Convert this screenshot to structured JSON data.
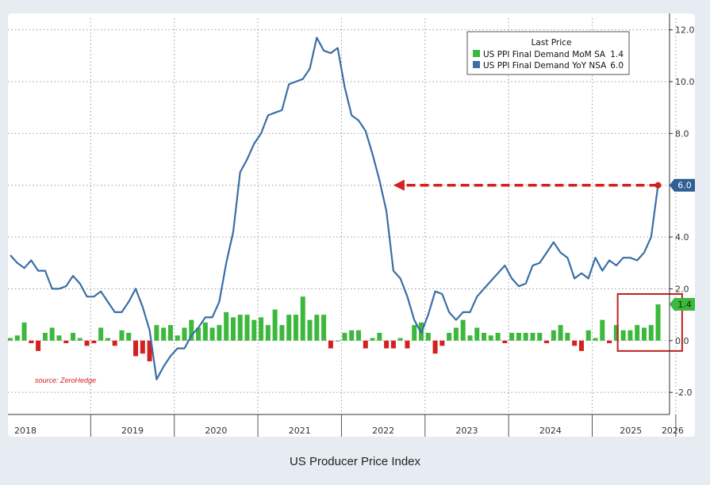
{
  "caption": "US Producer Price Index",
  "chart_data": {
    "type": "line+bar",
    "x_years": [
      "2018",
      "2019",
      "2020",
      "2021",
      "2022",
      "2023",
      "2024",
      "2025",
      "2026"
    ],
    "y_ticks": [
      "12.0",
      "10.0",
      "8.0",
      "6.0",
      "4.0",
      "2.0",
      "0.0",
      "-2.0"
    ],
    "ylim": [
      -2.8,
      12.6
    ],
    "grid": true,
    "legend": {
      "title": "Last Price",
      "position": "top-right",
      "items": [
        {
          "label": "US PPI Final Demand MoM SA",
          "value": "1.4",
          "color": "#3cb83c"
        },
        {
          "label": "US PPI Final Demand YoY NSA",
          "value": "6.0",
          "color": "#3a6ea5"
        }
      ]
    },
    "last_labels": {
      "line": "6.0",
      "bars": "1.4"
    },
    "source": "source: ZeroHedge",
    "series": [
      {
        "name": "US PPI Final Demand YoY NSA",
        "kind": "line",
        "color": "#3a6ea5",
        "start": "2018-01",
        "values": [
          3.3,
          3.0,
          2.8,
          3.1,
          2.7,
          2.7,
          2.0,
          2.0,
          2.1,
          2.5,
          2.2,
          1.7,
          1.7,
          1.9,
          1.5,
          1.1,
          1.1,
          1.5,
          2.0,
          1.3,
          0.4,
          -1.5,
          -1.0,
          -0.6,
          -0.3,
          -0.3,
          0.2,
          0.5,
          0.9,
          0.9,
          1.5,
          3.0,
          4.2,
          6.5,
          7.0,
          7.6,
          8.0,
          8.7,
          8.8,
          8.9,
          9.9,
          10.0,
          10.1,
          10.5,
          11.7,
          11.2,
          11.1,
          11.3,
          9.8,
          8.7,
          8.5,
          8.1,
          7.2,
          6.2,
          5.0,
          2.7,
          2.4,
          1.7,
          0.8,
          0.3,
          1.0,
          1.9,
          1.8,
          1.1,
          0.8,
          1.1,
          1.1,
          1.7,
          2.0,
          2.3,
          2.6,
          2.9,
          2.4,
          2.1,
          2.2,
          2.9,
          3.0,
          3.4,
          3.8,
          3.4,
          3.2,
          2.4,
          2.6,
          2.4,
          3.2,
          2.7,
          3.1,
          2.9,
          3.2,
          3.2,
          3.1,
          3.4,
          4.0,
          6.0
        ]
      },
      {
        "name": "US PPI Final Demand MoM SA",
        "kind": "bar",
        "color_up": "#3cb83c",
        "color_down": "#d42020",
        "start": "2018-01",
        "values": [
          0.1,
          0.2,
          0.7,
          -0.1,
          -0.4,
          0.3,
          0.5,
          0.2,
          -0.1,
          0.3,
          0.1,
          -0.2,
          -0.1,
          0.5,
          0.1,
          -0.2,
          0.4,
          0.3,
          -0.6,
          -0.5,
          -0.8,
          0.6,
          0.5,
          0.6,
          0.2,
          0.5,
          0.8,
          0.5,
          0.7,
          0.5,
          0.6,
          1.1,
          0.9,
          1.0,
          1.0,
          0.8,
          0.9,
          0.6,
          1.2,
          0.6,
          1.0,
          1.0,
          1.7,
          0.8,
          1.0,
          1.0,
          -0.3,
          0.0,
          0.3,
          0.4,
          0.4,
          -0.3,
          0.1,
          0.3,
          -0.3,
          -0.3,
          0.1,
          -0.3,
          0.6,
          0.7,
          0.3,
          -0.5,
          -0.2,
          0.3,
          0.5,
          0.8,
          0.2,
          0.5,
          0.3,
          0.2,
          0.3,
          -0.1,
          0.3,
          0.3,
          0.3,
          0.3,
          0.3,
          -0.1,
          0.4,
          0.6,
          0.3,
          -0.2,
          -0.4,
          0.4,
          0.1,
          0.8,
          -0.1,
          0.6,
          0.4,
          0.4,
          0.6,
          0.5,
          0.6,
          1.4
        ]
      }
    ],
    "annotations": [
      {
        "type": "dashed-arrow",
        "from_month": 93,
        "to_month": 55,
        "y": 6.0,
        "color": "#d42020"
      },
      {
        "type": "box",
        "from_month": 88,
        "to_month": 96,
        "y_from": -0.4,
        "y_to": 1.8,
        "color": "#c02020"
      }
    ]
  }
}
